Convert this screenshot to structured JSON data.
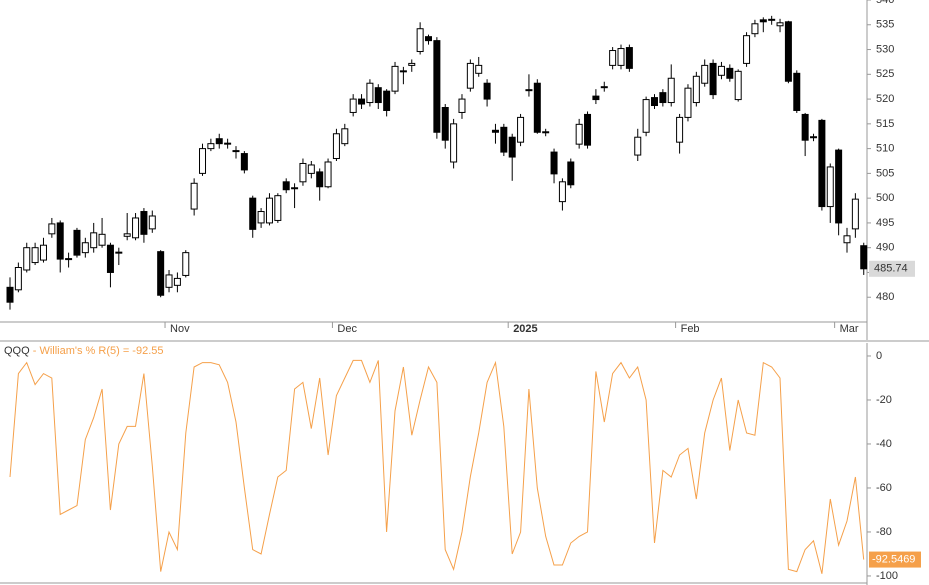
{
  "chart_data": [
    {
      "type": "candlestick",
      "categories": [
        null,
        null,
        null,
        null,
        null,
        null,
        null,
        null,
        null,
        null,
        null,
        null,
        null,
        null,
        null,
        null,
        null,
        null,
        null,
        "Nov",
        null,
        null,
        null,
        null,
        null,
        null,
        null,
        null,
        null,
        null,
        null,
        null,
        null,
        null,
        null,
        null,
        null,
        null,
        null,
        "Dec",
        null,
        null,
        null,
        null,
        null,
        null,
        null,
        null,
        null,
        null,
        null,
        null,
        null,
        null,
        null,
        null,
        null,
        null,
        null,
        null,
        "2025",
        null,
        null,
        null,
        null,
        null,
        null,
        null,
        null,
        null,
        null,
        null,
        null,
        null,
        null,
        null,
        null,
        null,
        null,
        null,
        "Feb",
        null,
        null,
        null,
        null,
        null,
        null,
        null,
        null,
        null,
        null,
        null,
        null,
        null,
        null,
        null,
        null,
        null,
        null,
        "Mar",
        null,
        null,
        null
      ],
      "open": [
        482,
        481.5,
        485.5,
        487,
        487.5,
        492.8,
        495,
        487.7,
        493.5,
        489,
        490,
        490.5,
        490.5,
        489,
        492.3,
        492,
        497.3,
        493.8,
        489.2,
        482,
        482.4,
        484.4,
        497.8,
        505,
        510,
        512,
        511,
        509.5,
        509,
        500,
        495,
        495,
        495.5,
        503.3,
        502.1,
        503.3,
        505,
        505.3,
        502.3,
        508,
        511,
        517.3,
        520,
        519.3,
        522.3,
        521.6,
        521.6,
        525.6,
        526.8,
        529.6,
        532.6,
        531.8,
        518.3,
        507.3,
        517.3,
        522.2,
        525.2,
        523.2,
        513.7,
        514.3,
        512.3,
        511.3,
        521.8,
        523.2,
        513.3,
        509.3,
        499.3,
        507.3,
        510.9,
        516.9,
        520.6,
        522.4,
        526.8,
        526.8,
        530.4,
        508.7,
        513.3,
        520.3,
        521.3,
        519.3,
        511.3,
        516.3,
        519.3,
        523.2,
        527.2,
        524.8,
        526.2,
        519.9,
        527.2,
        533.2,
        536,
        536,
        534.8,
        535.6,
        525.2,
        516.9,
        512.3,
        515.7,
        498.3,
        509.7,
        491,
        493.8,
        490.4
      ],
      "high": [
        484,
        487,
        491,
        491,
        492,
        496,
        495.5,
        489,
        494,
        492,
        495,
        496,
        491,
        490,
        497,
        497,
        498,
        497.5,
        489.5,
        485.5,
        485,
        489.5,
        504,
        511,
        512,
        513,
        512,
        510.5,
        509.5,
        500.5,
        498,
        501,
        501,
        504,
        503,
        508,
        507.5,
        506,
        508,
        514,
        515,
        521,
        521,
        524,
        523,
        522,
        527.5,
        526.5,
        528,
        535.5,
        533,
        532.5,
        519,
        516,
        521,
        528,
        528.5,
        524,
        515,
        515,
        513,
        517,
        525,
        524,
        514,
        510,
        504,
        508,
        516,
        517.5,
        522,
        523.5,
        530.5,
        531,
        531,
        514,
        520.5,
        521,
        522,
        527,
        517,
        523,
        525.5,
        528,
        528,
        527.5,
        527,
        526,
        533.5,
        536,
        536.5,
        536.8,
        536.2,
        535.8,
        525.8,
        517.2,
        513,
        516,
        507,
        510,
        494,
        501,
        491
      ],
      "low": [
        477.5,
        481,
        485,
        486.5,
        487,
        492,
        485,
        486,
        488,
        488,
        489,
        490,
        482,
        486.5,
        491.5,
        491.5,
        491,
        493,
        480,
        481,
        481,
        484,
        496.5,
        504.5,
        509.5,
        510,
        510,
        508,
        505,
        492,
        494,
        494.5,
        495,
        501,
        498,
        502.5,
        504,
        499.5,
        502,
        507.5,
        510.5,
        516.5,
        518,
        518.5,
        518,
        516.5,
        521,
        523,
        525.5,
        529,
        531,
        512,
        510,
        506,
        516,
        521.5,
        524.5,
        518.5,
        511,
        508.5,
        503.5,
        510.5,
        520.5,
        513,
        512.5,
        503,
        497.5,
        502,
        510,
        510,
        519,
        521.5,
        526,
        526,
        525.5,
        507.5,
        512.5,
        518,
        518.5,
        518.5,
        509,
        515.5,
        518.5,
        522.5,
        520,
        524,
        523.5,
        519.5,
        526.5,
        532.5,
        533.5,
        535,
        533.5,
        523.2,
        517.2,
        508.5,
        511.5,
        497.5,
        495,
        492.5,
        489,
        492,
        484.5
      ],
      "close": [
        479,
        486,
        490,
        490,
        490.5,
        494.8,
        487.7,
        487.8,
        488.5,
        491,
        493,
        492.7,
        485,
        489.1,
        492.8,
        496,
        492.7,
        496.4,
        480.4,
        484.5,
        483.8,
        489,
        503,
        510,
        511,
        511,
        511.1,
        509.6,
        505.7,
        493.7,
        497.3,
        500,
        500.5,
        501.7,
        502,
        507,
        506.7,
        502.3,
        507.3,
        513,
        514,
        520,
        519,
        523.2,
        519.3,
        517.7,
        526.6,
        525.7,
        527.2,
        534.2,
        531.8,
        513.3,
        511.7,
        515,
        520,
        527.2,
        526.8,
        520,
        513.3,
        509.3,
        508.3,
        516.3,
        521.9,
        513.3,
        513.4,
        504.9,
        503.3,
        502.7,
        514.9,
        510.7,
        519.9,
        522.5,
        529.8,
        530.2,
        526.2,
        512.3,
        519.9,
        518.7,
        519.3,
        524.2,
        516.3,
        522.2,
        524.6,
        526.8,
        520.9,
        526.6,
        524.2,
        525.6,
        532.8,
        535.2,
        535.6,
        536.1,
        535.4,
        523.6,
        517.7,
        511.7,
        512.4,
        498.3,
        506.3,
        495,
        492.4,
        499.8,
        485.74
      ],
      "up_color": "#ffffff",
      "down_color": "#000000",
      "tag_color": "#d9d9d9",
      "ylim": [
        475,
        540
      ],
      "yticks": [
        480,
        485,
        490,
        495,
        500,
        505,
        510,
        515,
        520,
        525,
        530,
        535,
        540
      ]
    },
    {
      "type": "line",
      "symbol": "QQQ",
      "title": " - William's % R(5) = -92.55",
      "values": [
        -55,
        -8,
        -3,
        -13,
        -8,
        -10,
        -72,
        -70,
        -68,
        -38,
        -28,
        -15,
        -70,
        -40,
        -32,
        -32,
        -8,
        -50,
        -98,
        -80,
        -88,
        -35,
        -5,
        -3,
        -3,
        -4,
        -12,
        -30,
        -60,
        -88,
        -90,
        -72,
        -55,
        -52,
        -15,
        -12,
        -33,
        -10,
        -45,
        -18,
        -10,
        -2,
        -2,
        -12,
        -2,
        -80,
        -25,
        -5,
        -36,
        -20,
        -5,
        -12,
        -88,
        -97,
        -80,
        -55,
        -35,
        -12,
        -3,
        -32,
        -90,
        -80,
        -15,
        -60,
        -82,
        -95,
        -95,
        -85,
        -82,
        -80,
        -7,
        -30,
        -8,
        -3,
        -10,
        -5,
        -20,
        -85,
        -52,
        -55,
        -45,
        -42,
        -65,
        -35,
        -20,
        -10,
        -43,
        -20,
        -35,
        -36,
        -3,
        -5,
        -10,
        -97,
        -98,
        -88,
        -84,
        -99,
        -65,
        -86,
        -75,
        -55,
        -92.5469
      ],
      "color": "#f5a04a",
      "title_color": "#f5a04a",
      "ylim": [
        -103.2,
        5.9
      ],
      "yticks": [
        0,
        -20,
        -40,
        -60,
        -80,
        -100
      ]
    }
  ]
}
